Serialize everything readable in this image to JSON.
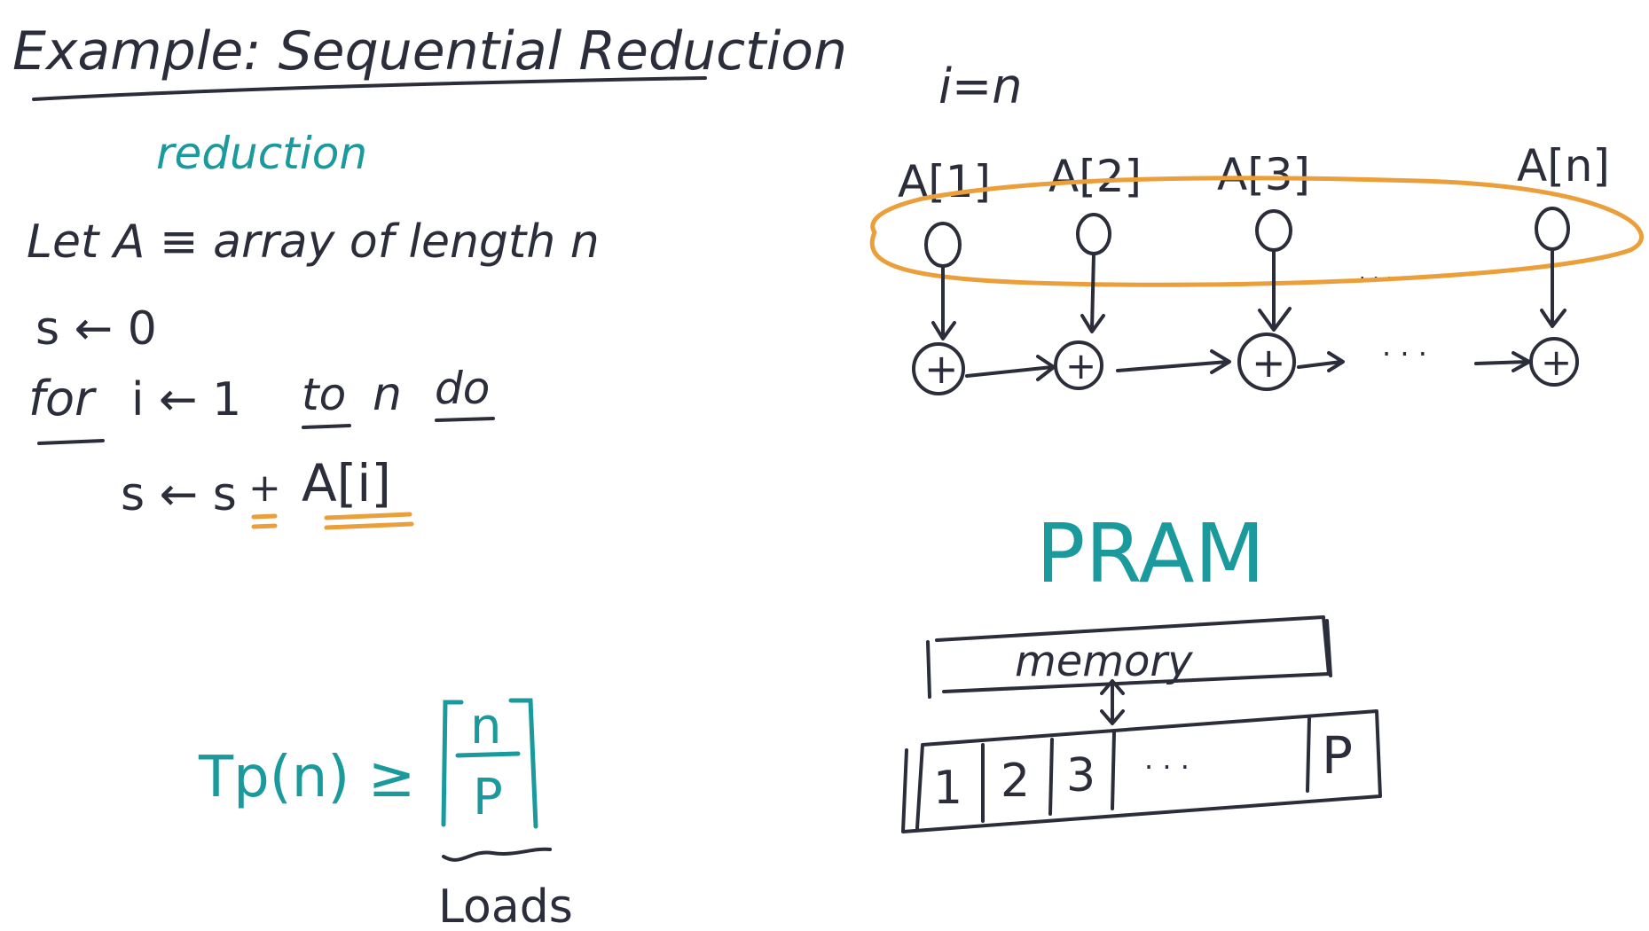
{
  "title": "Example: Sequential Reduction",
  "annotation_reduction": "reduction",
  "lines": {
    "let": "Let A ≡ array of length n",
    "init": "s ← 0",
    "for_kw": "for",
    "for_mid": "i ← 1",
    "to_kw": "to",
    "for_n": "n",
    "do_kw": "do",
    "body_lhs": "s ← s",
    "body_plus": "+",
    "body_rhs": "A[i]"
  },
  "formula": {
    "lhs": "Tp(n) ≥",
    "numerator": "n",
    "denominator": "P",
    "brace_label": "Loads"
  },
  "diagram": {
    "index_label": "i=n",
    "array_labels": [
      "A[1]",
      "A[2]",
      "A[3]",
      "A[n]"
    ],
    "plus_symbol": "+",
    "ellipsis": "· · ·",
    "small_ellipsis": "· · ·"
  },
  "pram": {
    "title": "PRAM",
    "memory_label": "memory",
    "processors": [
      "1",
      "2",
      "3",
      "· · ·",
      "P"
    ]
  },
  "colors": {
    "ink": "#2b2d3a",
    "teal": "#1a9a9c",
    "orange": "#ea9f3a"
  }
}
